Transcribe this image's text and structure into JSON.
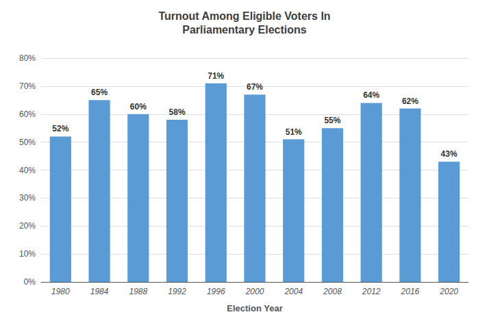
{
  "chart_data": {
    "type": "bar",
    "title": "Turnout Among Eligible Voters In\nParliamentary Elections",
    "xlabel": "Election Year",
    "categories": [
      "1980",
      "1984",
      "1988",
      "1992",
      "1996",
      "2000",
      "2004",
      "2008",
      "2012",
      "2016",
      "2020"
    ],
    "values": [
      52,
      65,
      60,
      58,
      71,
      67,
      51,
      55,
      64,
      62,
      43
    ],
    "value_labels": [
      "52%",
      "65%",
      "60%",
      "58%",
      "71%",
      "67%",
      "51%",
      "55%",
      "64%",
      "62%",
      "43%"
    ],
    "data_labels": true,
    "color": "#5b9bd5",
    "ylim": [
      0,
      80
    ],
    "yticks": [
      {
        "value": 0,
        "label": "0%"
      },
      {
        "value": 10,
        "label": "10%"
      },
      {
        "value": 20,
        "label": "20%"
      },
      {
        "value": 30,
        "label": "30%"
      },
      {
        "value": 40,
        "label": "40%"
      },
      {
        "value": 50,
        "label": "50%"
      },
      {
        "value": 60,
        "label": "60%"
      },
      {
        "value": 70,
        "label": "70%"
      },
      {
        "value": 80,
        "label": "80%"
      }
    ],
    "grid": true
  }
}
